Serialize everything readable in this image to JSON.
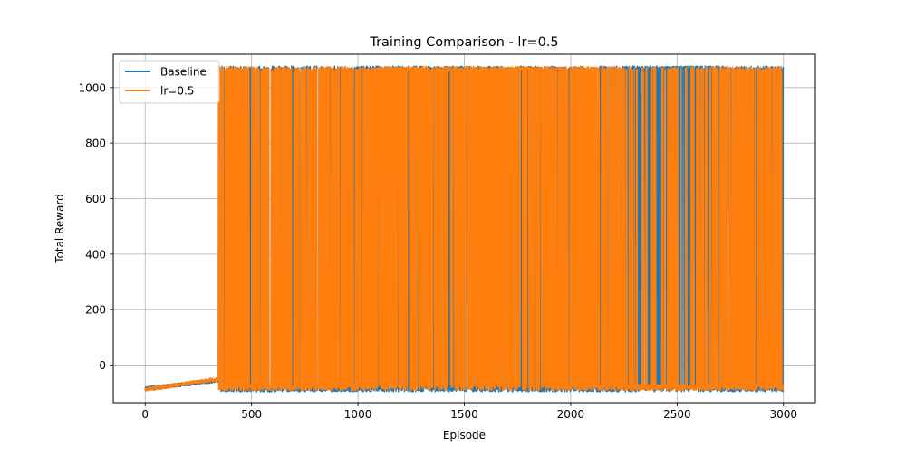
{
  "chart_data": {
    "type": "line",
    "title": "Training Comparison - lr=0.5",
    "xlabel": "Episode",
    "ylabel": "Total Reward",
    "xlim": [
      -150,
      3150
    ],
    "ylim": [
      -135,
      1120
    ],
    "xticks": [
      0,
      500,
      1000,
      1500,
      2000,
      2500,
      3000
    ],
    "yticks": [
      0,
      200,
      400,
      600,
      800,
      1000
    ],
    "grid": true,
    "legend_position": "top-left",
    "episodes": 3000,
    "series": [
      {
        "name": "Baseline",
        "color": "#1f77b4",
        "low_level": -85,
        "high_level": 1070,
        "ramp_start": [
          0,
          -85
        ],
        "ramp_end": [
          345,
          -55
        ],
        "first_spike_episode": 348,
        "segments": [
          {
            "from": 0,
            "to": 345,
            "spike_rate": 0.0
          },
          {
            "from": 345,
            "to": 1000,
            "spike_rate": 0.25
          },
          {
            "from": 1000,
            "to": 1950,
            "spike_rate": 0.45
          },
          {
            "from": 1950,
            "to": 2250,
            "spike_rate": 0.25
          },
          {
            "from": 2250,
            "to": 2700,
            "spike_rate": 0.55
          },
          {
            "from": 2700,
            "to": 3000,
            "spike_rate": 0.3
          }
        ]
      },
      {
        "name": "lr=0.5",
        "color": "#ff7f0e",
        "low_level": -80,
        "high_level": 1068,
        "ramp_start": [
          0,
          -88
        ],
        "ramp_end": [
          345,
          -50
        ],
        "first_spike_episode": 345,
        "segments": [
          {
            "from": 0,
            "to": 345,
            "spike_rate": 0.0
          },
          {
            "from": 345,
            "to": 1000,
            "spike_rate": 0.3
          },
          {
            "from": 1000,
            "to": 1900,
            "spike_rate": 0.6
          },
          {
            "from": 1900,
            "to": 2300,
            "spike_rate": 0.35
          },
          {
            "from": 2300,
            "to": 2700,
            "spike_rate": 0.15
          },
          {
            "from": 2700,
            "to": 3000,
            "spike_rate": 0.3
          }
        ]
      }
    ]
  }
}
